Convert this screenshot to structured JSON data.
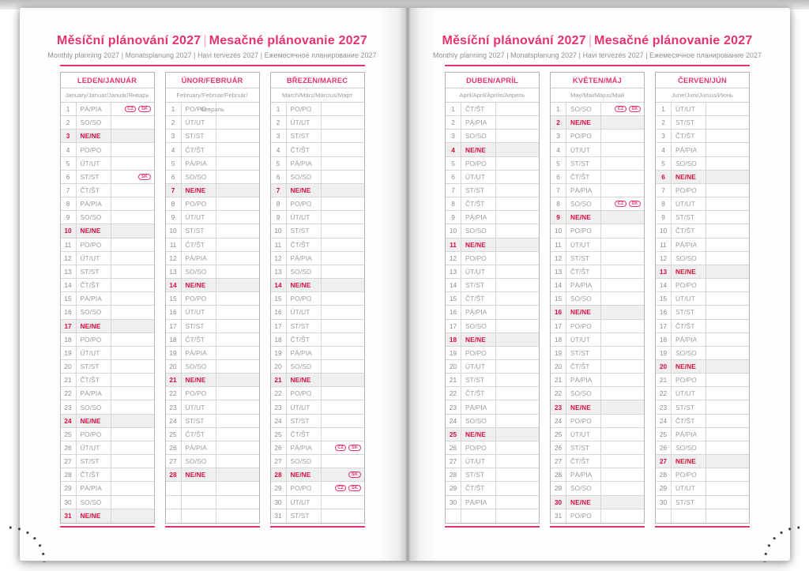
{
  "header": {
    "title_cz": "Měsíční plánování 2027",
    "title_sk": "Mesačné plánovanie 2027",
    "divider": "|",
    "subtitle": "Monthly planning 2027 | Monatsplanung 2027 | Havi tervezés 2027 | Ежемесячное планирование 2027"
  },
  "colors": {
    "accent_pink": "#e5336e",
    "holiday_red": "#d40f3f",
    "sunday_row_bg": "#efefef",
    "table_border": "#b3b3b3"
  },
  "weekday_abbreviations": {
    "monday": "PO/PO",
    "tuesday": "ÚT/UT",
    "wednesday": "ST/ST",
    "thursday": "ČT/ŠT",
    "friday": "PÁ/PIA",
    "saturday": "SO/SO",
    "sunday": "NE/NE"
  },
  "holiday_badge_codes": [
    "CZ",
    "SK"
  ],
  "months": [
    {
      "name": "LEDEN/JANUÁR",
      "languages": "January/Januar/Január/Январь",
      "rows": [
        [
          1,
          "PÁ/PIA",
          [
            "CZ",
            "SK"
          ]
        ],
        [
          2,
          "SO/SO"
        ],
        [
          3,
          "NE/NE"
        ],
        [
          4,
          "PO/PO"
        ],
        [
          5,
          "ÚT/UT"
        ],
        [
          6,
          "ST/ST",
          [
            "SK"
          ]
        ],
        [
          7,
          "ČT/ŠT"
        ],
        [
          8,
          "PÁ/PIA"
        ],
        [
          9,
          "SO/SO"
        ],
        [
          10,
          "NE/NE"
        ],
        [
          11,
          "PO/PO"
        ],
        [
          12,
          "ÚT/UT"
        ],
        [
          13,
          "ST/ST"
        ],
        [
          14,
          "ČT/ŠT"
        ],
        [
          15,
          "PÁ/PIA"
        ],
        [
          16,
          "SO/SO"
        ],
        [
          17,
          "NE/NE"
        ],
        [
          18,
          "PO/PO"
        ],
        [
          19,
          "ÚT/UT"
        ],
        [
          20,
          "ST/ST"
        ],
        [
          21,
          "ČT/ŠT"
        ],
        [
          22,
          "PÁ/PIA"
        ],
        [
          23,
          "SO/SO"
        ],
        [
          24,
          "NE/NE"
        ],
        [
          25,
          "PO/PO"
        ],
        [
          26,
          "ÚT/UT"
        ],
        [
          27,
          "ST/ST"
        ],
        [
          28,
          "ČT/ŠT"
        ],
        [
          29,
          "PÁ/PIA"
        ],
        [
          30,
          "SO/SO"
        ],
        [
          31,
          "NE/NE"
        ]
      ]
    },
    {
      "name": "ÚNOR/FEBRUÁR",
      "languages": "February/Februar/Február/Февраль",
      "rows": [
        [
          1,
          "PO/PO"
        ],
        [
          2,
          "ÚT/UT"
        ],
        [
          3,
          "ST/ST"
        ],
        [
          4,
          "ČT/ŠT"
        ],
        [
          5,
          "PÁ/PIA"
        ],
        [
          6,
          "SO/SO"
        ],
        [
          7,
          "NE/NE"
        ],
        [
          8,
          "PO/PO"
        ],
        [
          9,
          "ÚT/UT"
        ],
        [
          10,
          "ST/ST"
        ],
        [
          11,
          "ČT/ŠT"
        ],
        [
          12,
          "PÁ/PIA"
        ],
        [
          13,
          "SO/SO"
        ],
        [
          14,
          "NE/NE"
        ],
        [
          15,
          "PO/PO"
        ],
        [
          16,
          "ÚT/UT"
        ],
        [
          17,
          "ST/ST"
        ],
        [
          18,
          "ČT/ŠT"
        ],
        [
          19,
          "PÁ/PIA"
        ],
        [
          20,
          "SO/SO"
        ],
        [
          21,
          "NE/NE"
        ],
        [
          22,
          "PO/PO"
        ],
        [
          23,
          "ÚT/UT"
        ],
        [
          24,
          "ST/ST"
        ],
        [
          25,
          "ČT/ŠT"
        ],
        [
          26,
          "PÁ/PIA"
        ],
        [
          27,
          "SO/SO"
        ],
        [
          28,
          "NE/NE"
        ],
        [],
        [],
        []
      ]
    },
    {
      "name": "BŘEZEN/MAREC",
      "languages": "March/März/Március/Март",
      "rows": [
        [
          1,
          "PO/PO"
        ],
        [
          2,
          "ÚT/UT"
        ],
        [
          3,
          "ST/ST"
        ],
        [
          4,
          "ČT/ŠT"
        ],
        [
          5,
          "PÁ/PIA"
        ],
        [
          6,
          "SO/SO"
        ],
        [
          7,
          "NE/NE"
        ],
        [
          8,
          "PO/PO"
        ],
        [
          9,
          "ÚT/UT"
        ],
        [
          10,
          "ST/ST"
        ],
        [
          11,
          "ČT/ŠT"
        ],
        [
          12,
          "PÁ/PIA"
        ],
        [
          13,
          "SO/SO"
        ],
        [
          14,
          "NE/NE"
        ],
        [
          15,
          "PO/PO"
        ],
        [
          16,
          "ÚT/UT"
        ],
        [
          17,
          "ST/ST"
        ],
        [
          18,
          "ČT/ŠT"
        ],
        [
          19,
          "PÁ/PIA"
        ],
        [
          20,
          "SO/SO"
        ],
        [
          21,
          "NE/NE"
        ],
        [
          22,
          "PO/PO"
        ],
        [
          23,
          "ÚT/UT"
        ],
        [
          24,
          "ST/ST"
        ],
        [
          25,
          "ČT/ŠT"
        ],
        [
          26,
          "PÁ/PIA",
          [
            "CZ",
            "SK"
          ]
        ],
        [
          27,
          "SO/SO"
        ],
        [
          28,
          "NE/NE",
          [
            "SK"
          ]
        ],
        [
          29,
          "PO/PO",
          [
            "CZ",
            "SK"
          ]
        ],
        [
          30,
          "ÚT/UT"
        ],
        [
          31,
          "ST/ST"
        ]
      ]
    },
    {
      "name": "DUBEN/APRÍL",
      "languages": "April/April/Április/Апрель",
      "rows": [
        [
          1,
          "ČT/ŠT"
        ],
        [
          2,
          "PÁ/PIA"
        ],
        [
          3,
          "SO/SO"
        ],
        [
          4,
          "NE/NE"
        ],
        [
          5,
          "PO/PO"
        ],
        [
          6,
          "ÚT/UT"
        ],
        [
          7,
          "ST/ST"
        ],
        [
          8,
          "ČT/ŠT"
        ],
        [
          9,
          "PÁ/PIA"
        ],
        [
          10,
          "SO/SO"
        ],
        [
          11,
          "NE/NE"
        ],
        [
          12,
          "PO/PO"
        ],
        [
          13,
          "ÚT/UT"
        ],
        [
          14,
          "ST/ST"
        ],
        [
          15,
          "ČT/ŠT"
        ],
        [
          16,
          "PÁ/PIA"
        ],
        [
          17,
          "SO/SO"
        ],
        [
          18,
          "NE/NE"
        ],
        [
          19,
          "PO/PO"
        ],
        [
          20,
          "ÚT/UT"
        ],
        [
          21,
          "ST/ST"
        ],
        [
          22,
          "ČT/ŠT"
        ],
        [
          23,
          "PÁ/PIA"
        ],
        [
          24,
          "SO/SO"
        ],
        [
          25,
          "NE/NE"
        ],
        [
          26,
          "PO/PO"
        ],
        [
          27,
          "ÚT/UT"
        ],
        [
          28,
          "ST/ST"
        ],
        [
          29,
          "ČT/ŠT"
        ],
        [
          30,
          "PÁ/PIA"
        ],
        []
      ]
    },
    {
      "name": "KVĚTEN/MÁJ",
      "languages": "May/Mai/Május/Май",
      "rows": [
        [
          1,
          "SO/SO",
          [
            "CZ",
            "SK"
          ]
        ],
        [
          2,
          "NE/NE"
        ],
        [
          3,
          "PO/PO"
        ],
        [
          4,
          "ÚT/UT"
        ],
        [
          5,
          "ST/ST"
        ],
        [
          6,
          "ČT/ŠT"
        ],
        [
          7,
          "PÁ/PIA"
        ],
        [
          8,
          "SO/SO",
          [
            "CZ",
            "SK"
          ]
        ],
        [
          9,
          "NE/NE"
        ],
        [
          10,
          "PO/PO"
        ],
        [
          11,
          "ÚT/UT"
        ],
        [
          12,
          "ST/ST"
        ],
        [
          13,
          "ČT/ŠT"
        ],
        [
          14,
          "PÁ/PIA"
        ],
        [
          15,
          "SO/SO"
        ],
        [
          16,
          "NE/NE"
        ],
        [
          17,
          "PO/PO"
        ],
        [
          18,
          "ÚT/UT"
        ],
        [
          19,
          "ST/ST"
        ],
        [
          20,
          "ČT/ŠT"
        ],
        [
          21,
          "PÁ/PIA"
        ],
        [
          22,
          "SO/SO"
        ],
        [
          23,
          "NE/NE"
        ],
        [
          24,
          "PO/PO"
        ],
        [
          25,
          "ÚT/UT"
        ],
        [
          26,
          "ST/ST"
        ],
        [
          27,
          "ČT/ŠT"
        ],
        [
          28,
          "PÁ/PIA"
        ],
        [
          29,
          "SO/SO"
        ],
        [
          30,
          "NE/NE"
        ],
        [
          31,
          "PO/PO"
        ]
      ]
    },
    {
      "name": "ČERVEN/JÚN",
      "languages": "June/Juni/Június/Июнь",
      "rows": [
        [
          1,
          "ÚT/UT"
        ],
        [
          2,
          "ST/ST"
        ],
        [
          3,
          "ČT/ŠT"
        ],
        [
          4,
          "PÁ/PIA"
        ],
        [
          5,
          "SO/SO"
        ],
        [
          6,
          "NE/NE"
        ],
        [
          7,
          "PO/PO"
        ],
        [
          8,
          "ÚT/UT"
        ],
        [
          9,
          "ST/ST"
        ],
        [
          10,
          "ČT/ŠT"
        ],
        [
          11,
          "PÁ/PIA"
        ],
        [
          12,
          "SO/SO"
        ],
        [
          13,
          "NE/NE"
        ],
        [
          14,
          "PO/PO"
        ],
        [
          15,
          "ÚT/UT"
        ],
        [
          16,
          "ST/ST"
        ],
        [
          17,
          "ČT/ŠT"
        ],
        [
          18,
          "PÁ/PIA"
        ],
        [
          19,
          "SO/SO"
        ],
        [
          20,
          "NE/NE"
        ],
        [
          21,
          "PO/PO"
        ],
        [
          22,
          "ÚT/UT"
        ],
        [
          23,
          "ST/ST"
        ],
        [
          24,
          "ČT/ŠT"
        ],
        [
          25,
          "PÁ/PIA"
        ],
        [
          26,
          "SO/SO"
        ],
        [
          27,
          "NE/NE"
        ],
        [
          28,
          "PO/PO"
        ],
        [
          29,
          "ÚT/UT"
        ],
        [
          30,
          "ST/ST"
        ],
        []
      ]
    }
  ]
}
